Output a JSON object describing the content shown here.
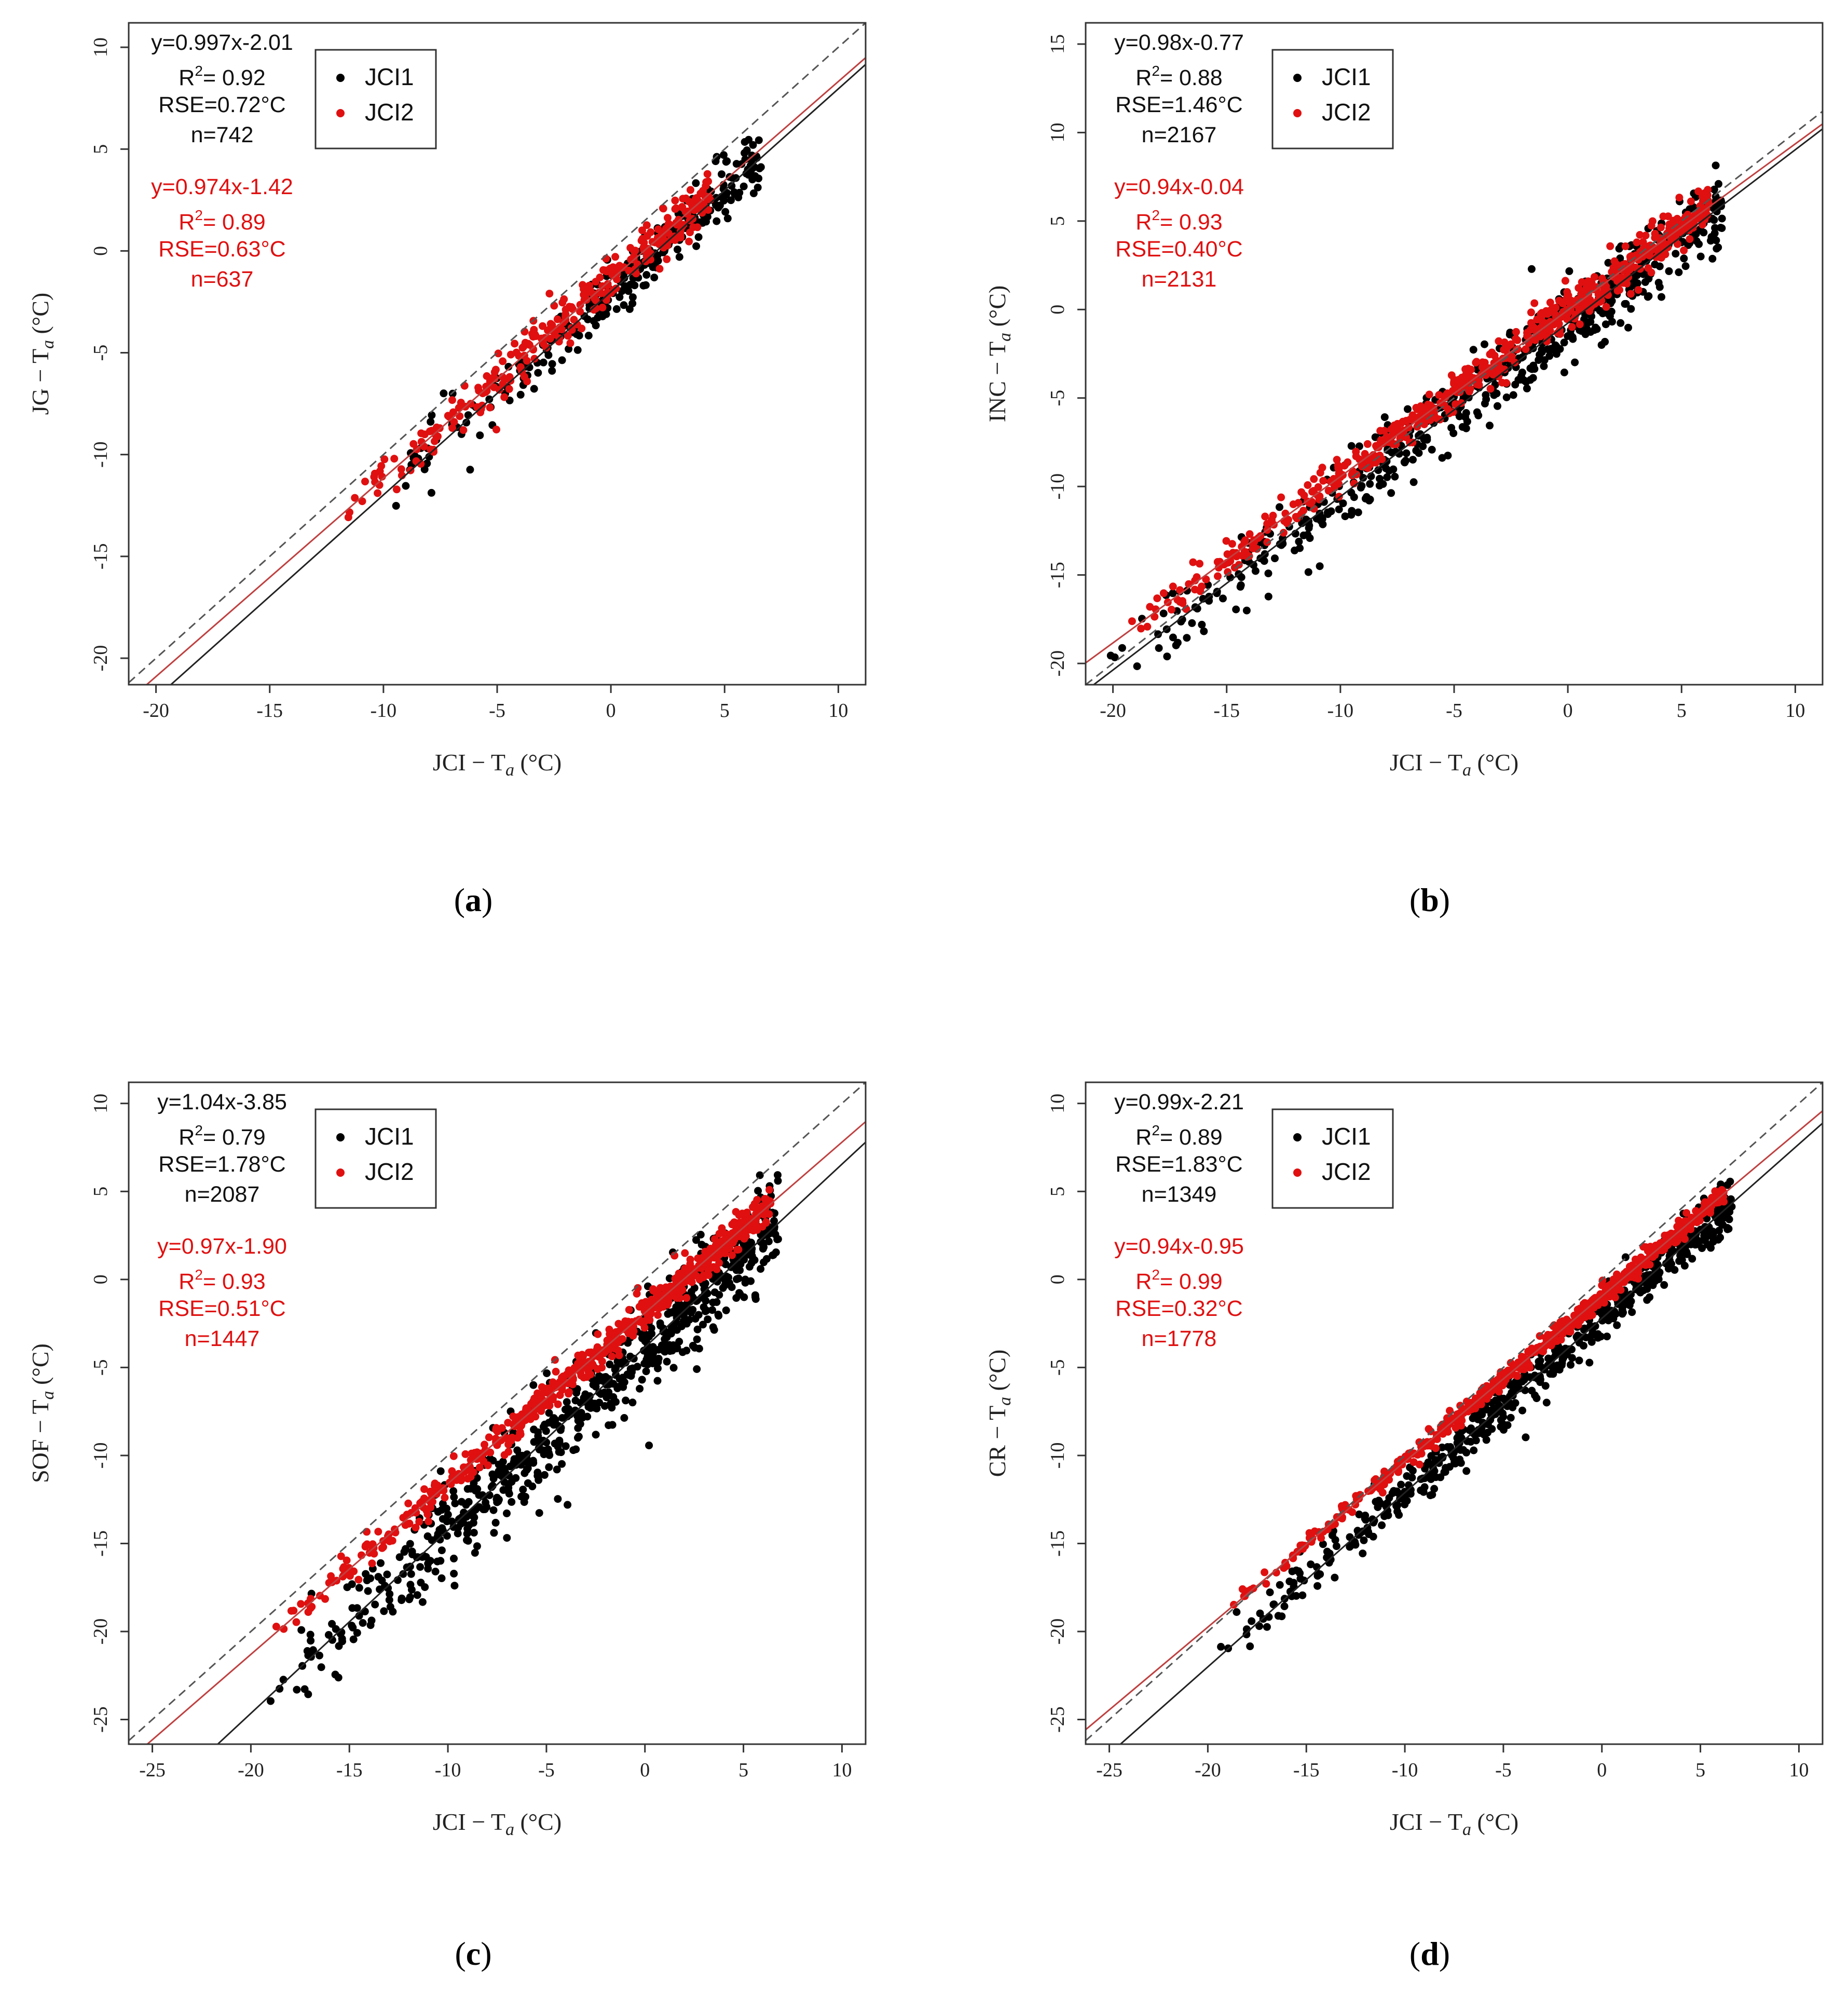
{
  "figure": {
    "colors": {
      "jci1": "#000000",
      "jci2": "#e01010",
      "fit_jci2": "#c04040",
      "axis": "#333333"
    }
  },
  "chart_data": [
    {
      "panel": "(a)",
      "type": "scatter",
      "xlabel": "JCI − T",
      "xlabel_sub": "a",
      "xlabel_unit": " (°C)",
      "ylabel": "JG − T",
      "ylabel_sub": "a",
      "ylabel_unit": " (°C)",
      "xlim": [
        -21.2,
        11.2
      ],
      "ylim": [
        -21.3,
        11.2
      ],
      "xticks": [
        -20,
        -15,
        -10,
        -5,
        0,
        5,
        10
      ],
      "yticks": [
        -20,
        -15,
        -10,
        -5,
        0,
        5,
        10
      ],
      "legend": [
        "JCI1",
        "JCI2"
      ],
      "series": [
        {
          "name": "JCI1",
          "fit": {
            "slope": 0.997,
            "intercept": -2.01
          },
          "equation": "y=0.997x-2.01",
          "r2_value": "= 0.92",
          "rse": "RSE=0.72°C",
          "n": "n=742",
          "cloud": {
            "xmin": -11,
            "xmax": 6.6,
            "spread": 1.0,
            "count": 280,
            "seed": 11
          }
        },
        {
          "name": "JCI2",
          "fit": {
            "slope": 0.974,
            "intercept": -1.42
          },
          "equation": "y=0.974x-1.42",
          "r2_value": "= 0.89",
          "rse": "RSE=0.63°C",
          "n": "n=637",
          "cloud": {
            "xmin": -11.8,
            "xmax": 4.4,
            "spread": 0.8,
            "count": 300,
            "seed": 12
          }
        }
      ]
    },
    {
      "panel": "(b)",
      "type": "scatter",
      "xlabel": "JCI − T",
      "xlabel_sub": "a",
      "xlabel_unit": " (°C)",
      "ylabel": "INC − T",
      "ylabel_sub": "a",
      "ylabel_unit": " (°C)",
      "xlim": [
        -21.2,
        11.2
      ],
      "ylim": [
        -21.2,
        16.2
      ],
      "xticks": [
        -20,
        -15,
        -10,
        -5,
        0,
        5,
        10
      ],
      "yticks": [
        -20,
        -15,
        -10,
        -5,
        0,
        5,
        10,
        15
      ],
      "legend": [
        "JCI1",
        "JCI2"
      ],
      "series": [
        {
          "name": "JCI1",
          "fit": {
            "slope": 0.98,
            "intercept": -0.77
          },
          "equation": "y=0.98x-0.77",
          "r2_value": "= 0.88",
          "rse": "RSE=1.46°C",
          "n": "n=2167",
          "cloud": {
            "xmin": -20.5,
            "xmax": 6.8,
            "spread": 1.4,
            "count": 560,
            "seed": 21
          }
        },
        {
          "name": "JCI2",
          "fit": {
            "slope": 0.94,
            "intercept": -0.04
          },
          "equation": "y=0.94x-0.04",
          "r2_value": "= 0.93",
          "rse": "RSE=0.40°C",
          "n": "n=2131",
          "cloud": {
            "xmin": -19.5,
            "xmax": 6.2,
            "spread": 0.7,
            "count": 620,
            "seed": 22
          }
        }
      ]
    },
    {
      "panel": "(c)",
      "type": "scatter",
      "xlabel": "JCI − T",
      "xlabel_sub": "a",
      "xlabel_unit": " (°C)",
      "ylabel": "SOF − T",
      "ylabel_sub": "a",
      "ylabel_unit": " (°C)",
      "xlim": [
        -26.2,
        11.2
      ],
      "ylim": [
        -26.4,
        11.2
      ],
      "xticks": [
        -25,
        -20,
        -15,
        -10,
        -5,
        0,
        5,
        10
      ],
      "yticks": [
        -25,
        -20,
        -15,
        -10,
        -5,
        0,
        5,
        10
      ],
      "legend": [
        "JCI1",
        "JCI2"
      ],
      "series": [
        {
          "name": "JCI1",
          "fit": {
            "slope": 1.04,
            "intercept": -3.85
          },
          "equation": "y=1.04x-3.85",
          "r2_value": "= 0.79",
          "rse": "RSE=1.78°C",
          "n": "n=2087",
          "cloud": {
            "xmin": -20.3,
            "xmax": 6.8,
            "spread": 1.8,
            "count": 720,
            "seed": 31
          }
        },
        {
          "name": "JCI2",
          "fit": {
            "slope": 0.97,
            "intercept": -1.9
          },
          "equation": "y=0.97x-1.90",
          "r2_value": "= 0.93",
          "rse": "RSE=0.51°C",
          "n": "n=1447",
          "cloud": {
            "xmin": -19.5,
            "xmax": 6.4,
            "spread": 0.6,
            "count": 620,
            "seed": 32
          }
        }
      ]
    },
    {
      "panel": "(d)",
      "type": "scatter",
      "xlabel": "JCI − T",
      "xlabel_sub": "a",
      "xlabel_unit": " (°C)",
      "ylabel": "CR − T",
      "ylabel_sub": "a",
      "ylabel_unit": " (°C)",
      "xlim": [
        -26.2,
        11.2
      ],
      "ylim": [
        -26.4,
        11.2
      ],
      "xticks": [
        -25,
        -20,
        -15,
        -10,
        -5,
        0,
        5,
        10
      ],
      "yticks": [
        -25,
        -20,
        -15,
        -10,
        -5,
        0,
        5,
        10
      ],
      "legend": [
        "JCI1",
        "JCI2"
      ],
      "series": [
        {
          "name": "JCI1",
          "fit": {
            "slope": 0.99,
            "intercept": -2.21
          },
          "equation": "y=0.99x-2.21",
          "r2_value": "= 0.89",
          "rse": "RSE=1.83°C",
          "n": "n=1349",
          "cloud": {
            "xmin": -20.2,
            "xmax": 6.6,
            "spread": 0.9,
            "count": 560,
            "seed": 41
          }
        },
        {
          "name": "JCI2",
          "fit": {
            "slope": 0.94,
            "intercept": -0.95
          },
          "equation": "y=0.94x-0.95",
          "r2_value": "= 0.99",
          "rse": "RSE=0.32°C",
          "n": "n=1778",
          "cloud": {
            "xmin": -19,
            "xmax": 6.2,
            "spread": 0.35,
            "count": 600,
            "seed": 42
          }
        }
      ]
    }
  ]
}
